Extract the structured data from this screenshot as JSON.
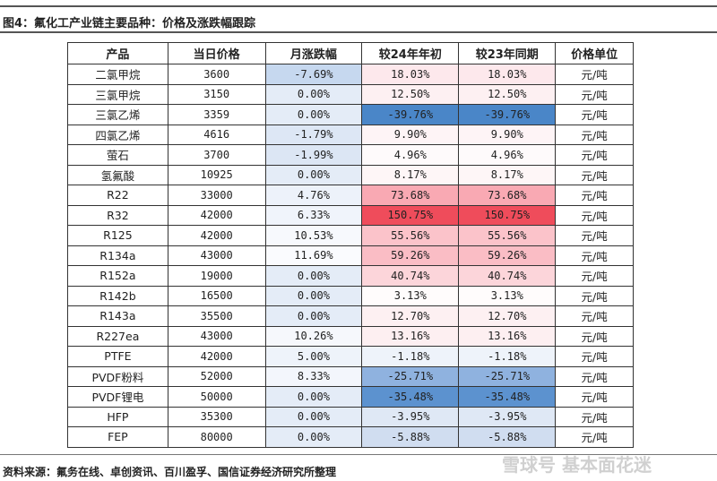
{
  "title": "图4：氟化工产业链主要品种：价格及涨跌幅跟踪",
  "source": "资料来源：氟务在线、卓创资讯、百川盈孚、国信证券经济研究所整理",
  "watermark": "雪球号 基本面花迷",
  "table": {
    "headers": [
      "产品",
      "当日价格",
      "月涨跌幅",
      "较24年年初",
      "较23年同期",
      "价格单位"
    ],
    "rows": [
      {
        "product": "二氯甲烷",
        "price": "3600",
        "mom": "-7.69%",
        "ytd": "18.03%",
        "yoy": "18.03%",
        "unit": "元/吨",
        "mom_color": "#c6d8ef",
        "ytd_color": "#fde8ec"
      },
      {
        "product": "三氯甲烷",
        "price": "3150",
        "mom": "0.00%",
        "ytd": "12.50%",
        "yoy": "12.50%",
        "unit": "元/吨",
        "mom_color": "#e4ecf7",
        "ytd_color": "#fdf0f2"
      },
      {
        "product": "三氯乙烯",
        "price": "3359",
        "mom": "0.00%",
        "ytd": "-39.76%",
        "yoy": "-39.76%",
        "unit": "元/吨",
        "mom_color": "#e4ecf7",
        "ytd_color": "#4a86c8"
      },
      {
        "product": "四氯乙烯",
        "price": "4616",
        "mom": "-1.79%",
        "ytd": "9.90%",
        "yoy": "9.90%",
        "unit": "元/吨",
        "mom_color": "#dde7f5",
        "ytd_color": "#fef4f6"
      },
      {
        "product": "萤石",
        "price": "3700",
        "mom": "-1.99%",
        "ytd": "4.96%",
        "yoy": "4.96%",
        "unit": "元/吨",
        "mom_color": "#dce6f4",
        "ytd_color": "#fefafb"
      },
      {
        "product": "氢氟酸",
        "price": "10925",
        "mom": "0.00%",
        "ytd": "8.17%",
        "yoy": "8.17%",
        "unit": "元/吨",
        "mom_color": "#e4ecf7",
        "ytd_color": "#fef6f7"
      },
      {
        "product": "R22",
        "price": "33000",
        "mom": "4.76%",
        "ytd": "73.68%",
        "yoy": "73.68%",
        "unit": "元/吨",
        "mom_color": "#edf2fa",
        "ytd_color": "#f9a9b3"
      },
      {
        "product": "R32",
        "price": "42000",
        "mom": "6.33%",
        "ytd": "150.75%",
        "yoy": "150.75%",
        "unit": "元/吨",
        "mom_color": "#f0f4fb",
        "ytd_color": "#ef4c5b"
      },
      {
        "product": "R125",
        "price": "42000",
        "mom": "10.53%",
        "ytd": "55.56%",
        "yoy": "55.56%",
        "unit": "元/吨",
        "mom_color": "#f7f9fd",
        "ytd_color": "#fbc3ca"
      },
      {
        "product": "R134a",
        "price": "43000",
        "mom": "11.69%",
        "ytd": "59.26%",
        "yoy": "59.26%",
        "unit": "元/吨",
        "mom_color": "#fafbfe",
        "ytd_color": "#fabdc5"
      },
      {
        "product": "R152a",
        "price": "19000",
        "mom": "0.00%",
        "ytd": "40.74%",
        "yoy": "40.74%",
        "unit": "元/吨",
        "mom_color": "#e4ecf7",
        "ytd_color": "#fcd5da"
      },
      {
        "product": "R142b",
        "price": "16500",
        "mom": "0.00%",
        "ytd": "3.13%",
        "yoy": "3.13%",
        "unit": "元/吨",
        "mom_color": "#e4ecf7",
        "ytd_color": "#fffcfc"
      },
      {
        "product": "R143a",
        "price": "35500",
        "mom": "0.00%",
        "ytd": "12.70%",
        "yoy": "12.70%",
        "unit": "元/吨",
        "mom_color": "#e4ecf7",
        "ytd_color": "#fdf0f2"
      },
      {
        "product": "R227ea",
        "price": "43000",
        "mom": "10.26%",
        "ytd": "13.16%",
        "yoy": "13.16%",
        "unit": "元/吨",
        "mom_color": "#f6f8fc",
        "ytd_color": "#fdeff1"
      },
      {
        "product": "PTFE",
        "price": "42000",
        "mom": "5.00%",
        "ytd": "-1.18%",
        "yoy": "-1.18%",
        "unit": "元/吨",
        "mom_color": "#eef3fa",
        "ytd_color": "#eef3fa"
      },
      {
        "product": "PVDF粉料",
        "price": "52000",
        "mom": "8.33%",
        "ytd": "-25.71%",
        "yoy": "-25.71%",
        "unit": "元/吨",
        "mom_color": "#f3f6fc",
        "ytd_color": "#8fb2df"
      },
      {
        "product": "PVDF锂电",
        "price": "50000",
        "mom": "0.00%",
        "ytd": "-35.48%",
        "yoy": "-35.48%",
        "unit": "元/吨",
        "mom_color": "#e4ecf7",
        "ytd_color": "#5c92cf"
      },
      {
        "product": "HFP",
        "price": "35300",
        "mom": "0.00%",
        "ytd": "-3.95%",
        "yoy": "-3.95%",
        "unit": "元/吨",
        "mom_color": "#e4ecf7",
        "ytd_color": "#dfe8f5"
      },
      {
        "product": "FEP",
        "price": "80000",
        "mom": "0.00%",
        "ytd": "-5.88%",
        "yoy": "-5.88%",
        "unit": "元/吨",
        "mom_color": "#e4ecf7",
        "ytd_color": "#d0ddf0"
      }
    ]
  }
}
